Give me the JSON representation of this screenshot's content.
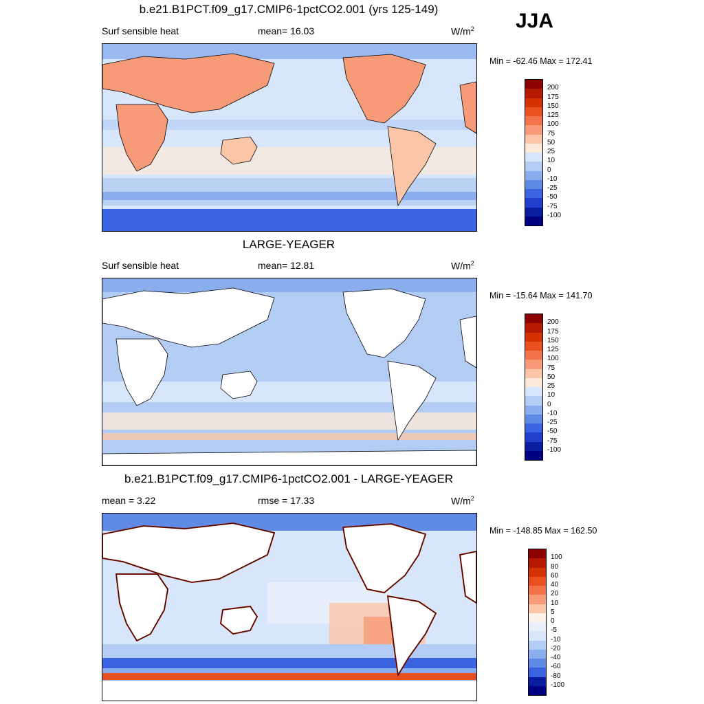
{
  "season": "JJA",
  "panels": [
    {
      "title": "b.e21.B1PCT.f09_g17.CMIP6-1pctCO2.001 (yrs 125-149)",
      "left_label": "Surf sensible heat",
      "center_label": "mean=  16.03",
      "units_base": "W/m",
      "units_exp": "2",
      "minmax": "Min = -62.46 Max = 172.41",
      "levels": [
        "200",
        "175",
        "150",
        "125",
        "100",
        "75",
        "50",
        "25",
        "10",
        "0",
        "-10",
        "-25",
        "-50",
        "-75",
        "-100"
      ],
      "colors": [
        "#8b0000",
        "#b31a00",
        "#d43200",
        "#e8501f",
        "#f2724a",
        "#f79a78",
        "#fbc6a8",
        "#fde9d9",
        "#d7e6fa",
        "#b3ccf3",
        "#8aaeed",
        "#5f8ae6",
        "#3a64df",
        "#1f3fcc",
        "#0a1d9e",
        "#000080"
      ]
    },
    {
      "title": "LARGE-YEAGER",
      "left_label": "Surf sensible heat",
      "center_label": "mean=  12.81",
      "units_base": "W/m",
      "units_exp": "2",
      "minmax": "Min = -15.64 Max = 141.70",
      "levels": [
        "200",
        "175",
        "150",
        "125",
        "100",
        "75",
        "50",
        "25",
        "10",
        "0",
        "-10",
        "-25",
        "-50",
        "-75",
        "-100"
      ],
      "colors": [
        "#8b0000",
        "#b31a00",
        "#d43200",
        "#e8501f",
        "#f2724a",
        "#f79a78",
        "#fbc6a8",
        "#fde9d9",
        "#d7e6fa",
        "#b3ccf3",
        "#8aaeed",
        "#5f8ae6",
        "#3a64df",
        "#1f3fcc",
        "#0a1d9e",
        "#000080"
      ]
    },
    {
      "title": "b.e21.B1PCT.f09_g17.CMIP6-1pctCO2.001 - LARGE-YEAGER",
      "left_label": "mean =   3.22",
      "center_label": "rmse =  17.33",
      "units_base": "W/m",
      "units_exp": "2",
      "minmax": "Min = -148.85 Max = 162.50",
      "levels": [
        "100",
        "80",
        "60",
        "40",
        "20",
        "10",
        "5",
        "0",
        "-5",
        "-10",
        "-20",
        "-40",
        "-60",
        "-80",
        "-100"
      ],
      "colors": [
        "#8b0000",
        "#b31a00",
        "#d43200",
        "#e8501f",
        "#f2724a",
        "#f79a78",
        "#fbc6a8",
        "#fdf2ea",
        "#e8effb",
        "#d7e6fa",
        "#b3ccf3",
        "#8aaeed",
        "#5f8ae6",
        "#3a64df",
        "#0a1d9e",
        "#000080"
      ]
    }
  ]
}
